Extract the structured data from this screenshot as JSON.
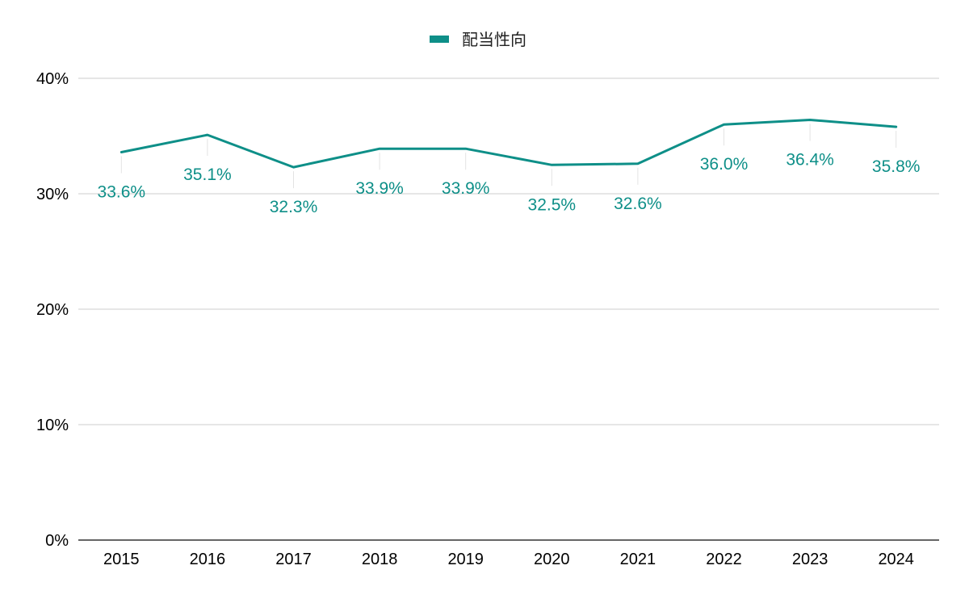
{
  "chart_data": {
    "type": "line",
    "categories": [
      "2015",
      "2016",
      "2017",
      "2018",
      "2019",
      "2020",
      "2021",
      "2022",
      "2023",
      "2024"
    ],
    "series": [
      {
        "name": "配当性向",
        "values": [
          33.6,
          35.1,
          32.3,
          33.9,
          33.9,
          32.5,
          32.6,
          36.0,
          36.4,
          35.8
        ],
        "data_labels": [
          "33.6%",
          "35.1%",
          "32.3%",
          "33.9%",
          "33.9%",
          "32.5%",
          "32.6%",
          "36.0%",
          "36.4%",
          "35.8%"
        ],
        "color": "#0e8f88"
      }
    ],
    "y_ticks": [
      0,
      10,
      20,
      30,
      40
    ],
    "y_tick_labels": [
      "0%",
      "10%",
      "20%",
      "30%",
      "40%"
    ],
    "ylim": [
      0,
      40
    ],
    "grid": true,
    "legend_position": "top-center",
    "title": "",
    "xlabel": "",
    "ylabel": ""
  }
}
